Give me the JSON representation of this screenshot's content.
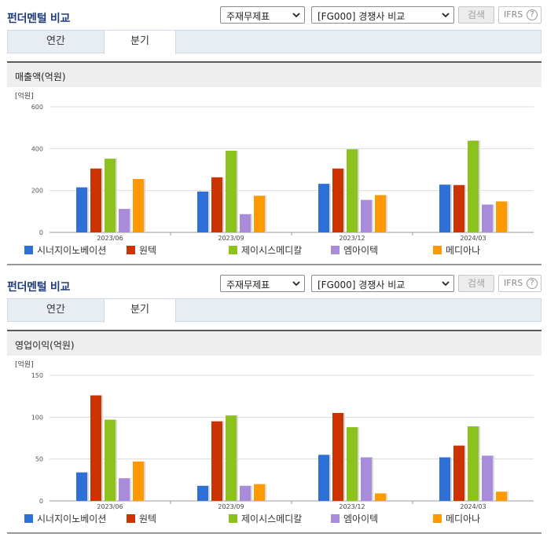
{
  "panels": [
    {
      "title": "펀더멘털 비교",
      "main_select": "주재무제표",
      "compare_select": "[FG000] 경쟁사 비교",
      "search_label": "검색",
      "ifrs_label": "IFRS",
      "help_label": "?",
      "tabs": [
        "연간",
        "분기"
      ],
      "active_tab": "분기",
      "section_title": "매출액(억원)"
    },
    {
      "title": "펀더멘털 비교",
      "main_select": "주재무제표",
      "compare_select": "[FG000] 경쟁사 비교",
      "search_label": "검색",
      "ifrs_label": "IFRS",
      "help_label": "?",
      "tabs": [
        "연간",
        "분기"
      ],
      "active_tab": "분기",
      "section_title": "영업이익(억원)"
    }
  ],
  "colors": {
    "series": [
      "#2f6fd8",
      "#cc3300",
      "#8cc21b",
      "#a98bdc",
      "#ff9900"
    ],
    "grid": "#dcdcdc",
    "axis": "#999999"
  },
  "chart_data": [
    {
      "type": "bar",
      "unit_label": "[억원]",
      "categories": [
        "2023/06",
        "2023/09",
        "2023/12",
        "2024/03"
      ],
      "ylim": [
        0,
        600
      ],
      "yticks": [
        0,
        200,
        400,
        600
      ],
      "series": [
        {
          "name": "시너지이노베이션",
          "values": [
            215,
            195,
            232,
            228
          ]
        },
        {
          "name": "원텍",
          "values": [
            305,
            263,
            305,
            226
          ]
        },
        {
          "name": "제이시스메디칼",
          "values": [
            352,
            390,
            397,
            438
          ]
        },
        {
          "name": "엠아이텍",
          "values": [
            112,
            87,
            155,
            133
          ]
        },
        {
          "name": "메디아나",
          "values": [
            255,
            175,
            178,
            148
          ]
        }
      ],
      "legend_position": "bottom",
      "grid": true
    },
    {
      "type": "bar",
      "unit_label": "[억원]",
      "categories": [
        "2023/06",
        "2023/09",
        "2023/12",
        "2024/03"
      ],
      "ylim": [
        0,
        150
      ],
      "yticks": [
        0,
        50,
        100,
        150
      ],
      "series": [
        {
          "name": "시너지이노베이션",
          "values": [
            34,
            18,
            55,
            52
          ]
        },
        {
          "name": "원텍",
          "values": [
            126,
            95,
            105,
            66
          ]
        },
        {
          "name": "제이시스메디칼",
          "values": [
            97,
            102,
            88,
            89
          ]
        },
        {
          "name": "엠아이텍",
          "values": [
            27,
            18,
            52,
            54
          ]
        },
        {
          "name": "메디아나",
          "values": [
            47,
            20,
            9,
            11
          ]
        }
      ],
      "legend_position": "bottom",
      "grid": true
    }
  ]
}
